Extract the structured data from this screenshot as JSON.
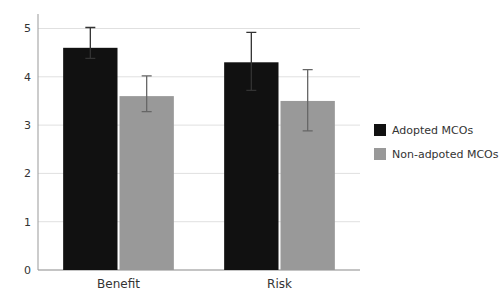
{
  "chart_data": {
    "type": "bar",
    "categories": [
      "Benefit",
      "Risk"
    ],
    "series": [
      {
        "name": "Adopted MCOs",
        "color": "#111111",
        "values": [
          4.6,
          4.3
        ],
        "errors_up": [
          0.42,
          0.62
        ],
        "errors_down": [
          0.22,
          0.58
        ]
      },
      {
        "name": "Non-adpoted MCOs",
        "color": "#999999",
        "values": [
          3.6,
          3.5
        ],
        "errors_up": [
          0.42,
          0.65
        ],
        "errors_down": [
          0.32,
          0.62
        ]
      }
    ],
    "ylim": [
      0,
      5.3
    ],
    "yticks": [
      0,
      1,
      2,
      3,
      4,
      5
    ],
    "grid": true,
    "legend": "right"
  }
}
